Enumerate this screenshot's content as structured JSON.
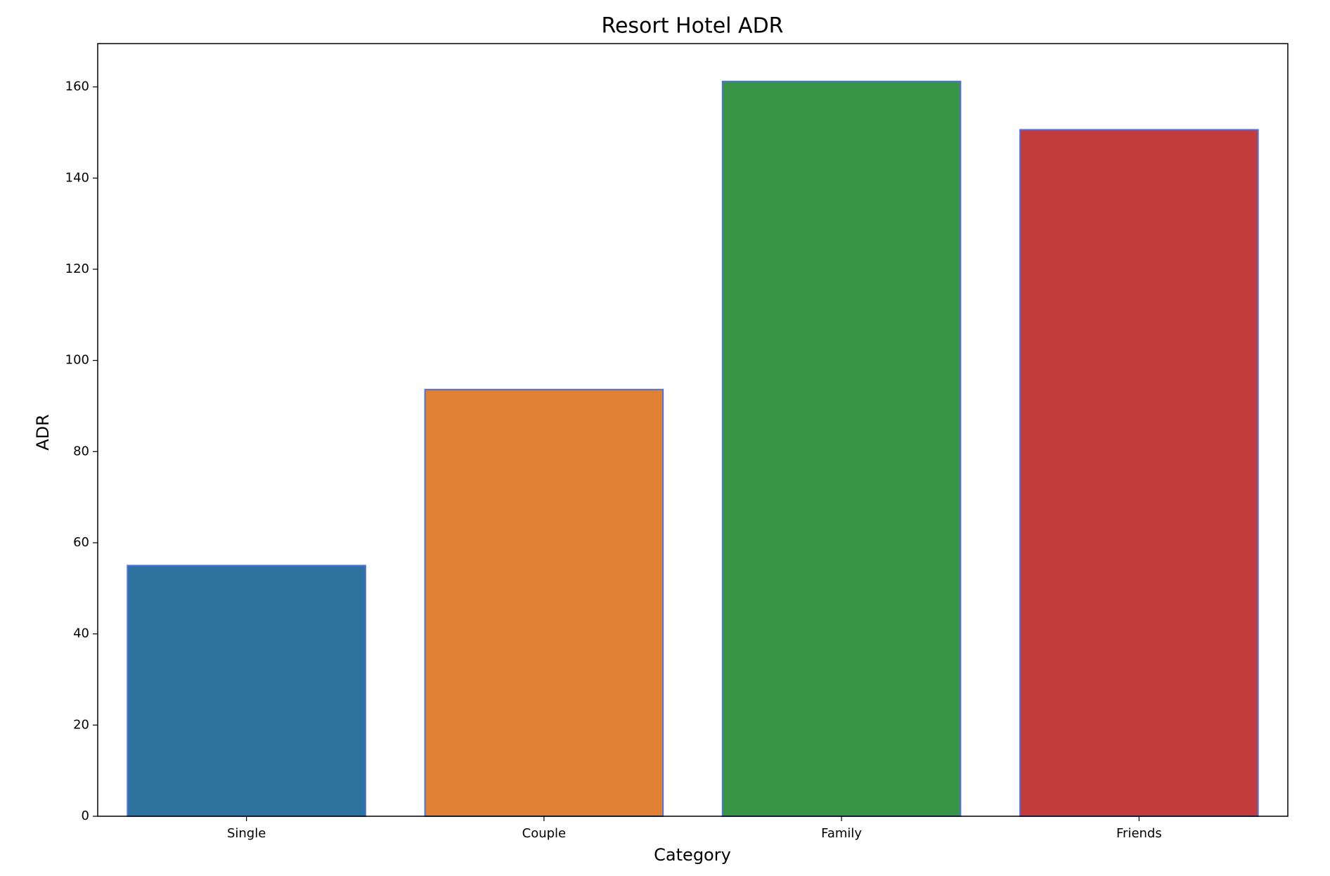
{
  "chart_data": {
    "type": "bar",
    "title": "Resort Hotel ADR",
    "xlabel": "Category",
    "ylabel": "ADR",
    "categories": [
      "Single",
      "Couple",
      "Family",
      "Friends"
    ],
    "values": [
      55.0,
      93.6,
      161.2,
      150.6
    ],
    "colors": [
      "#2e73a0",
      "#e08133",
      "#379444",
      "#c23c3d"
    ],
    "edge_color": "#4d72e0",
    "ylim": [
      0,
      169.5
    ],
    "yticks": [
      0,
      20,
      40,
      60,
      80,
      100,
      120,
      140,
      160
    ],
    "grid": false,
    "legend": "none"
  }
}
